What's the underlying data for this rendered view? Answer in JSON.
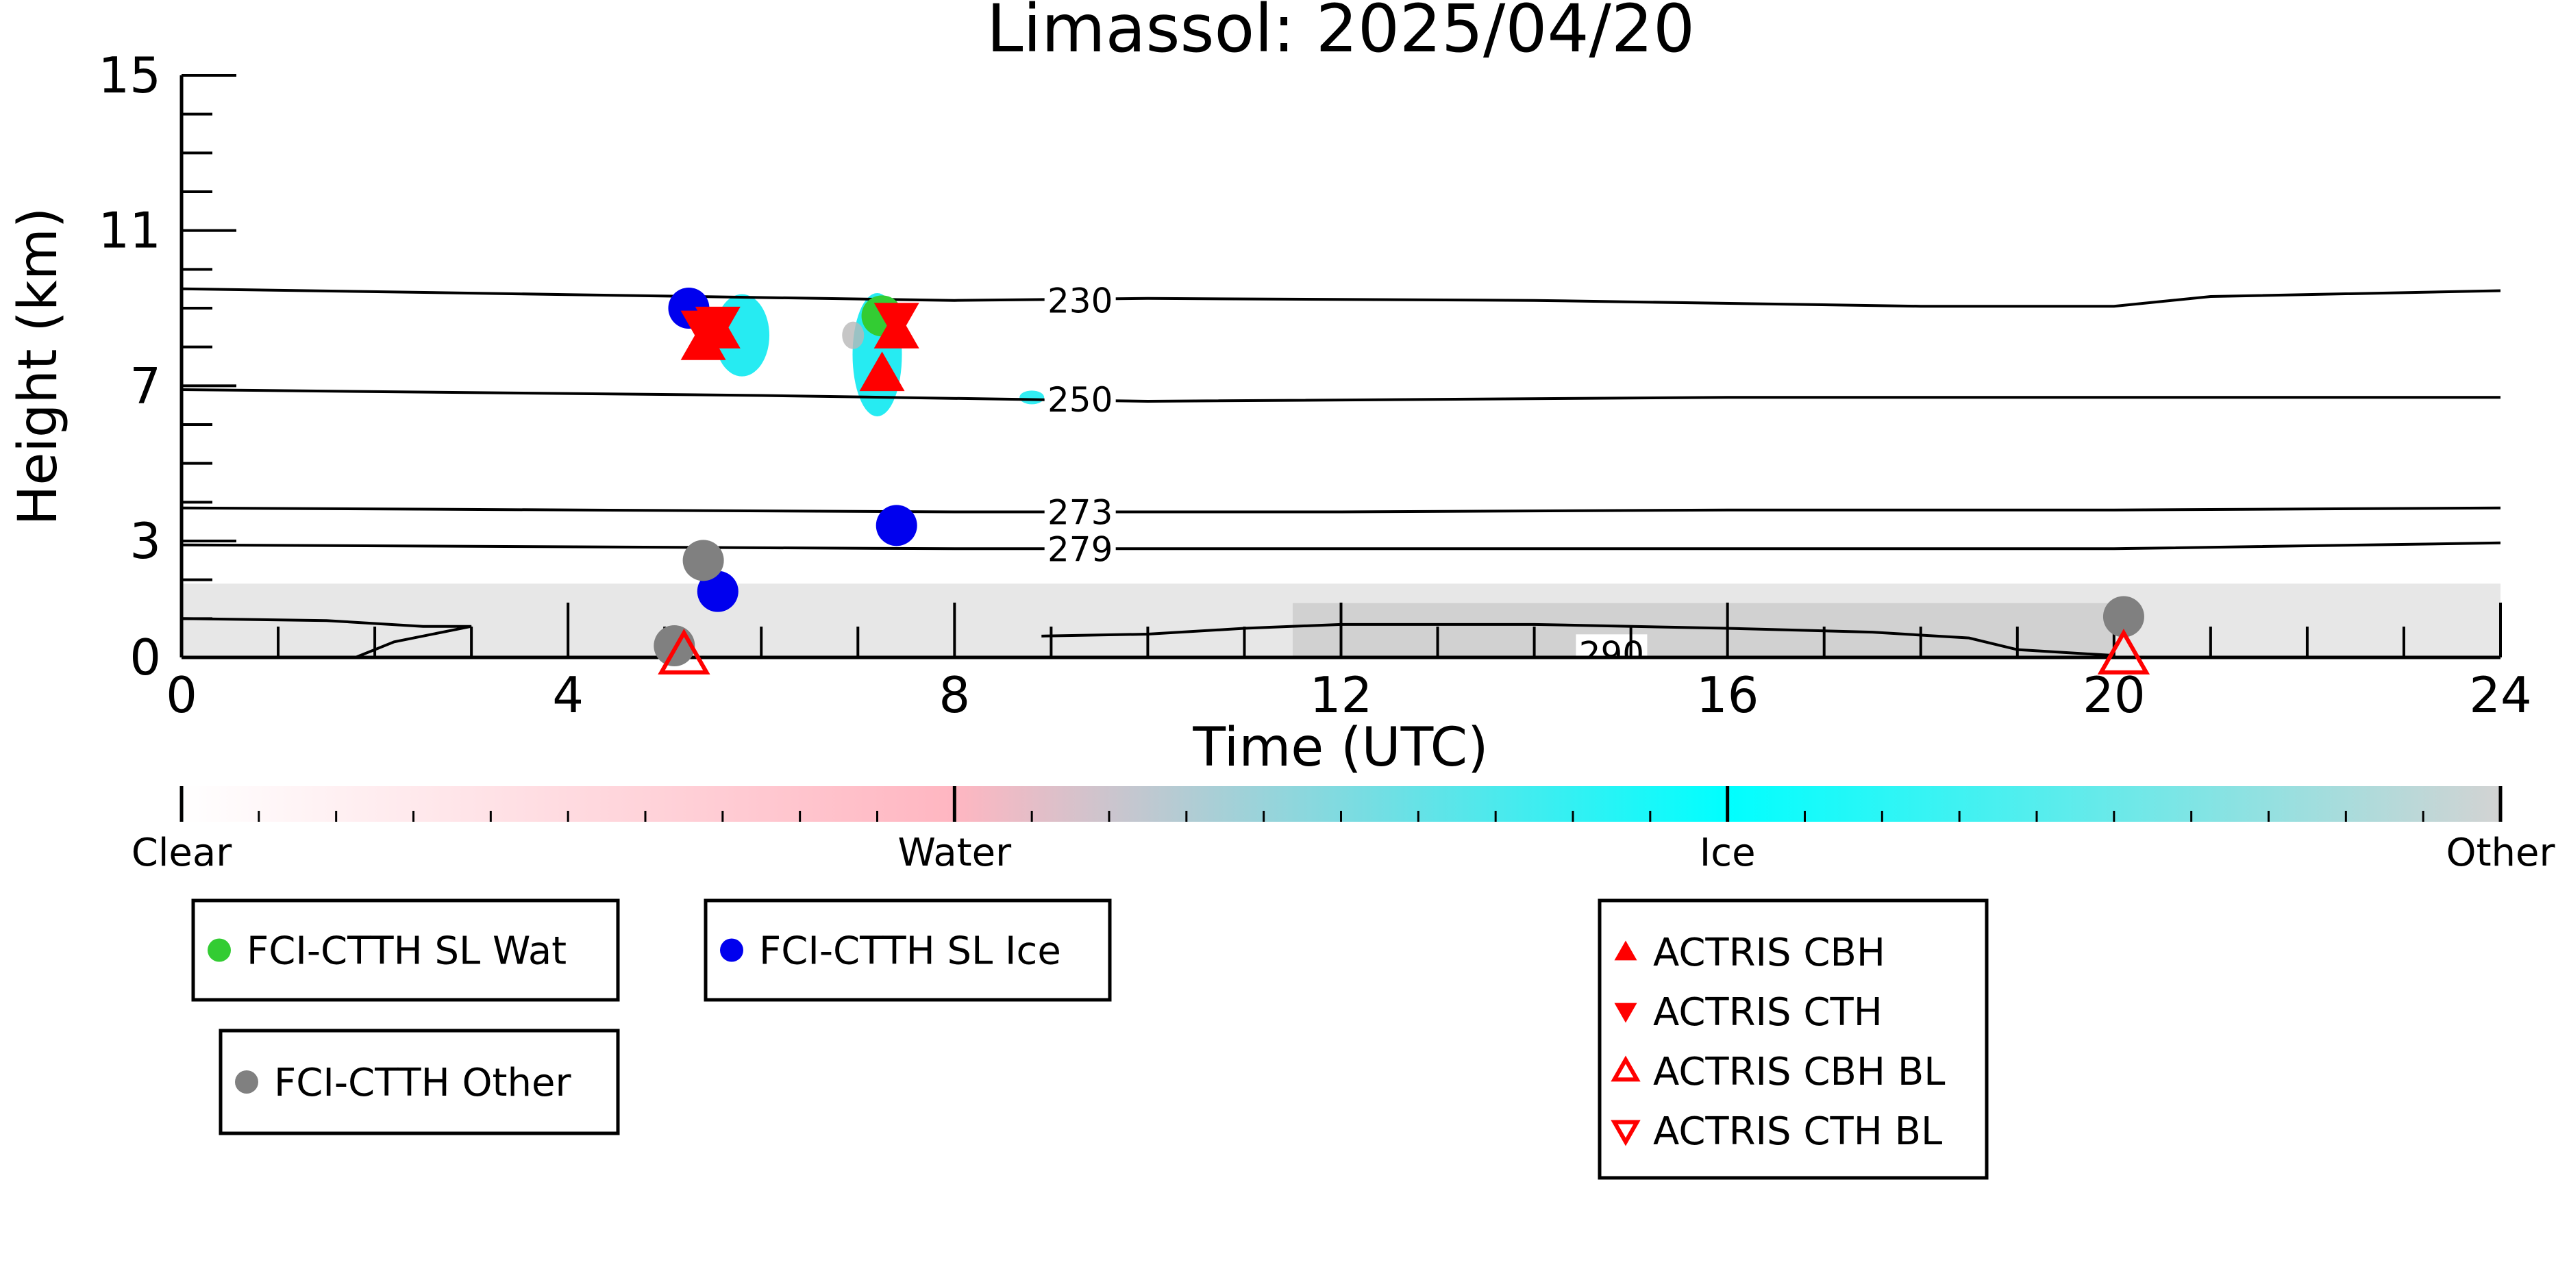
{
  "chart_data": {
    "type": "scatter",
    "title": "Limassol: 2025/04/20",
    "xlabel": "Time (UTC)",
    "ylabel": "Height (km)",
    "xlim": [
      0,
      24
    ],
    "ylim": [
      0,
      15
    ],
    "x_ticks": [
      0,
      4,
      8,
      12,
      16,
      20,
      24
    ],
    "y_ticks": [
      0,
      3,
      7,
      11,
      15
    ],
    "grid": false,
    "colorbar": {
      "orientation": "horizontal",
      "labels": [
        "Clear",
        "Water",
        "Ice",
        "Other"
      ],
      "colors": [
        "#ffffff",
        "#ffb6c1",
        "#00ffff",
        "#d3d3d3"
      ]
    },
    "isotherms": [
      {
        "label": "230",
        "x": [
          0,
          4,
          8,
          10,
          14,
          18,
          20,
          21,
          24
        ],
        "y": [
          9.5,
          9.35,
          9.2,
          9.25,
          9.2,
          9.05,
          9.05,
          9.3,
          9.45
        ]
      },
      {
        "label": "250",
        "x": [
          0,
          6,
          10,
          16,
          20,
          24
        ],
        "y": [
          6.9,
          6.75,
          6.6,
          6.7,
          6.7,
          6.7
        ]
      },
      {
        "label": "273",
        "x": [
          0,
          8,
          12,
          16,
          20,
          24
        ],
        "y": [
          3.85,
          3.75,
          3.75,
          3.8,
          3.8,
          3.85
        ]
      },
      {
        "label": "279",
        "x": [
          0,
          8,
          12,
          16,
          20,
          24
        ],
        "y": [
          2.9,
          2.8,
          2.8,
          2.8,
          2.8,
          2.95
        ]
      },
      {
        "label": "290",
        "x": [
          0,
          1.5,
          2.5,
          3.0,
          2.2,
          1.8
        ],
        "y": [
          1.0,
          0.95,
          0.8,
          0.8,
          0.4,
          0.0
        ]
      }
    ],
    "series": [
      {
        "name": "FCI-CTTH SL Wat",
        "marker": "circle",
        "color": "#33cc33",
        "x": [
          7.25
        ],
        "y": [
          8.8
        ]
      },
      {
        "name": "FCI-CTTH SL Ice",
        "marker": "circle",
        "color": "#0000ee",
        "x": [
          5.25,
          5.55,
          7.4
        ],
        "y": [
          9.0,
          1.7,
          3.4
        ]
      },
      {
        "name": "FCI-CTTH Other",
        "marker": "circle",
        "color": "#808080",
        "x": [
          5.4,
          5.1,
          20.1
        ],
        "y": [
          2.5,
          0.3,
          1.05
        ]
      },
      {
        "name": "ACTRIS CBH",
        "marker": "triangle-up",
        "color": "#ff0000",
        "x": [
          5.4,
          5.55,
          7.25,
          7.4
        ],
        "y": [
          8.1,
          8.4,
          7.3,
          8.4
        ]
      },
      {
        "name": "ACTRIS CTH",
        "marker": "triangle-down",
        "color": "#ff0000",
        "x": [
          5.4,
          5.55,
          7.4
        ],
        "y": [
          8.5,
          8.6,
          8.7
        ]
      },
      {
        "name": "ACTRIS CBH BL",
        "marker": "triangle-up-open",
        "color": "#ff0000",
        "x": [
          5.2,
          20.1
        ],
        "y": [
          0.05,
          0.05
        ]
      },
      {
        "name": "ACTRIS CTH BL",
        "marker": "triangle-down-open",
        "color": "#ff0000",
        "x": [],
        "y": []
      }
    ],
    "legend_groups": [
      [
        "FCI-CTTH SL Wat"
      ],
      [
        "FCI-CTTH SL Ice"
      ],
      [
        "FCI-CTTH Other"
      ],
      [
        "ACTRIS CBH",
        "ACTRIS CTH",
        "ACTRIS CBH BL",
        "ACTRIS CTH BL"
      ]
    ]
  }
}
